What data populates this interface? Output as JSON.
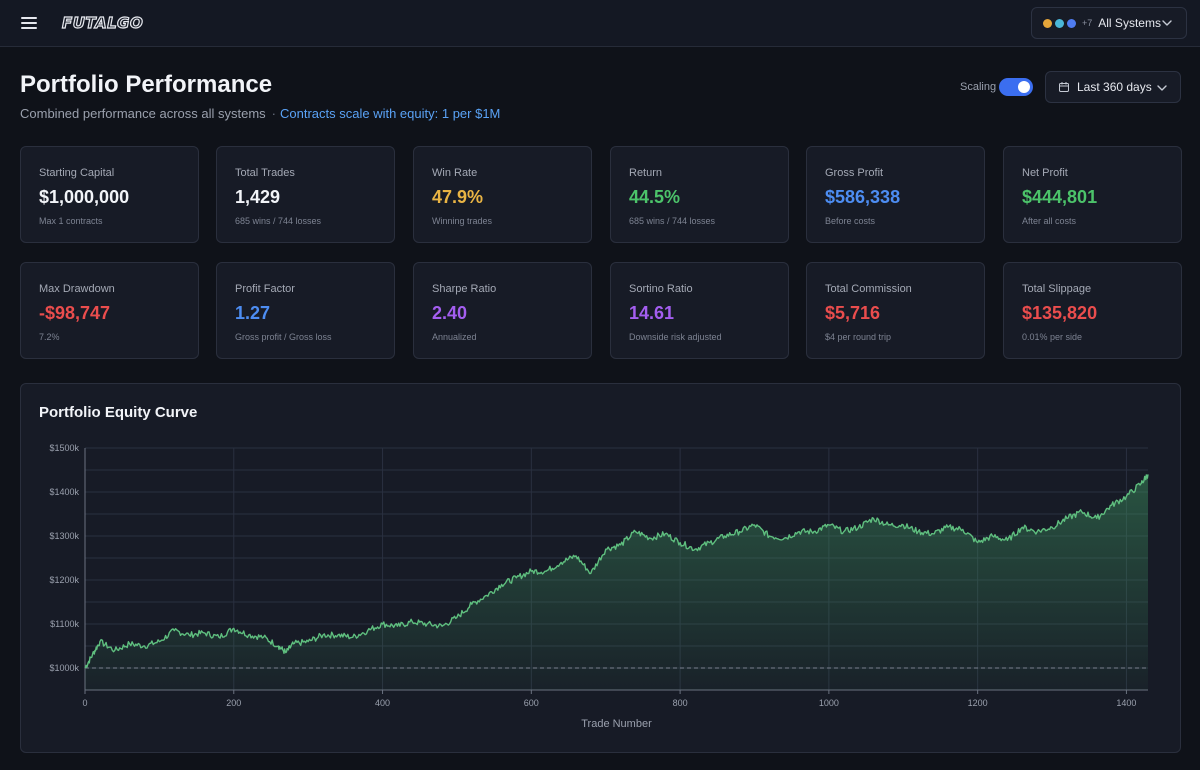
{
  "app": {
    "logo": "FUTALGO",
    "system_select": {
      "dots": [
        "#e6a63a",
        "#4bb7d8",
        "#4f7cf0"
      ],
      "more": "+7",
      "label": "All Systems"
    }
  },
  "header": {
    "title": "Portfolio Performance",
    "subtitle": "Combined performance across all systems",
    "separator": "·",
    "scale_note": "Contracts scale with equity: 1 per $1M",
    "scaling_label": "Scaling",
    "scaling_on": true,
    "range_label": "Last 360 days"
  },
  "metrics": [
    {
      "label": "Starting Capital",
      "value": "$1,000,000",
      "sub": "Max 1 contracts",
      "color": "#f2f4f8"
    },
    {
      "label": "Total Trades",
      "value": "1,429",
      "sub": "685 wins / 744 losses",
      "color": "#f2f4f8"
    },
    {
      "label": "Win Rate",
      "value": "47.9%",
      "sub": "Winning trades",
      "color": "#e9b444"
    },
    {
      "label": "Return",
      "value": "44.5%",
      "sub": "685 wins / 744 losses",
      "color": "#4cc36a"
    },
    {
      "label": "Gross Profit",
      "value": "$586,338",
      "sub": "Before costs",
      "color": "#4d8df2"
    },
    {
      "label": "Net Profit",
      "value": "$444,801",
      "sub": "After all costs",
      "color": "#4cc36a"
    },
    {
      "label": "Max Drawdown",
      "value": "-$98,747",
      "sub": "7.2%",
      "color": "#ea4d4d"
    },
    {
      "label": "Profit Factor",
      "value": "1.27",
      "sub": "Gross profit / Gross loss",
      "color": "#4d8df2"
    },
    {
      "label": "Sharpe Ratio",
      "value": "2.40",
      "sub": "Annualized",
      "color": "#a45ef0"
    },
    {
      "label": "Sortino Ratio",
      "value": "14.61",
      "sub": "Downside risk adjusted",
      "color": "#a45ef0"
    },
    {
      "label": "Total Commission",
      "value": "$5,716",
      "sub": "$4 per round trip",
      "color": "#ea4d4d"
    },
    {
      "label": "Total Slippage",
      "value": "$135,820",
      "sub": "0.01% per side",
      "color": "#ea4d4d"
    }
  ],
  "chart_data": {
    "type": "area",
    "title": "Portfolio Equity Curve",
    "xlabel": "Trade Number",
    "ylabel": "",
    "xlim": [
      0,
      1429
    ],
    "ylim": [
      950000,
      1500000
    ],
    "xticks": [
      0,
      200,
      400,
      600,
      800,
      1000,
      1200,
      1400
    ],
    "yticks": [
      1000000,
      1100000,
      1200000,
      1300000,
      1400000,
      1500000
    ],
    "ytick_labels": [
      "$1000k",
      "$1100k",
      "$1200k",
      "$1300k",
      "$1400k",
      "$1500k"
    ],
    "baseline": 1000000,
    "grid": true,
    "line_color": "#5fbf7f",
    "x": [
      0,
      10,
      20,
      40,
      60,
      80,
      100,
      120,
      140,
      160,
      180,
      200,
      220,
      240,
      260,
      270,
      280,
      300,
      320,
      340,
      360,
      380,
      400,
      420,
      440,
      460,
      480,
      500,
      520,
      540,
      560,
      580,
      600,
      620,
      640,
      660,
      680,
      700,
      720,
      740,
      760,
      780,
      800,
      820,
      840,
      860,
      880,
      900,
      920,
      940,
      960,
      980,
      1000,
      1020,
      1040,
      1060,
      1080,
      1100,
      1120,
      1140,
      1160,
      1180,
      1200,
      1220,
      1240,
      1260,
      1280,
      1300,
      1320,
      1340,
      1360,
      1380,
      1400,
      1420,
      1429
    ],
    "y": [
      1000000,
      1030000,
      1060000,
      1040000,
      1055000,
      1050000,
      1060000,
      1085000,
      1075000,
      1080000,
      1070000,
      1090000,
      1075000,
      1070000,
      1050000,
      1035000,
      1055000,
      1060000,
      1075000,
      1075000,
      1070000,
      1085000,
      1100000,
      1095000,
      1105000,
      1100000,
      1095000,
      1115000,
      1145000,
      1165000,
      1190000,
      1205000,
      1220000,
      1220000,
      1240000,
      1255000,
      1215000,
      1270000,
      1280000,
      1310000,
      1295000,
      1305000,
      1285000,
      1270000,
      1285000,
      1300000,
      1310000,
      1325000,
      1300000,
      1295000,
      1310000,
      1310000,
      1325000,
      1310000,
      1320000,
      1340000,
      1325000,
      1325000,
      1310000,
      1305000,
      1320000,
      1315000,
      1285000,
      1300000,
      1290000,
      1320000,
      1310000,
      1320000,
      1340000,
      1355000,
      1340000,
      1370000,
      1390000,
      1420000,
      1440000
    ]
  }
}
